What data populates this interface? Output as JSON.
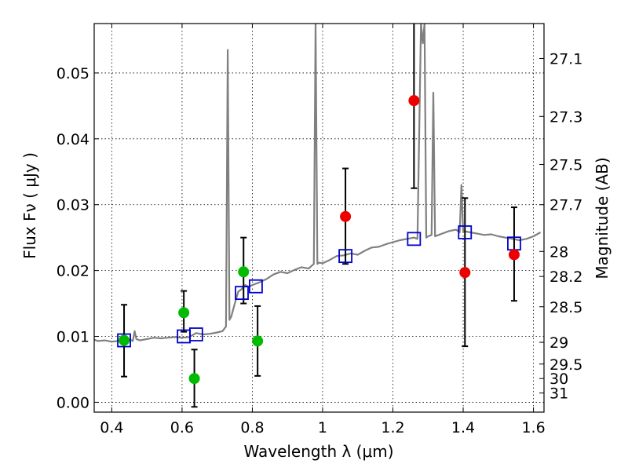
{
  "chart_data": {
    "type": "scatter",
    "title": "",
    "xlabel": "Wavelength  λ (μm)",
    "ylabel": "Flux  Fν  ( μJy )",
    "y2label": "Magnitude (AB)",
    "xlim": [
      0.35,
      1.63
    ],
    "ylim": [
      -0.0015,
      0.0575
    ],
    "xticks": [
      0.4,
      0.6,
      0.8,
      1.0,
      1.2,
      1.4,
      1.6
    ],
    "xtick_labels": [
      "0.4",
      "0.6",
      "0.8",
      "1",
      "1.2",
      "1.4",
      "1.6"
    ],
    "yticks": [
      0.0,
      0.01,
      0.02,
      0.03,
      0.04,
      0.05
    ],
    "ytick_labels": [
      "0.00",
      "0.01",
      "0.02",
      "0.03",
      "0.04",
      "0.05"
    ],
    "y2ticks": [
      {
        "label": "27.1",
        "flux": 0.0522
      },
      {
        "label": "27.3",
        "flux": 0.0434
      },
      {
        "label": "27.5",
        "flux": 0.0361
      },
      {
        "label": "27.7",
        "flux": 0.03
      },
      {
        "label": "28",
        "flux": 0.0229
      },
      {
        "label": "28.2",
        "flux": 0.0191
      },
      {
        "label": "28.5",
        "flux": 0.0145
      },
      {
        "label": "29",
        "flux": 0.0091
      },
      {
        "label": "29.5",
        "flux": 0.0058
      },
      {
        "label": "30",
        "flux": 0.0036
      },
      {
        "label": "31",
        "flux": 0.0014
      }
    ],
    "grid": true,
    "colors": {
      "model": "#808080",
      "green_points": "#00bb00",
      "red_points": "#ee0000",
      "model_boxes": "#0000cc",
      "errorbars": "#000000"
    },
    "model_spectrum": {
      "x": [
        0.35,
        0.36,
        0.38,
        0.4,
        0.42,
        0.44,
        0.45,
        0.46,
        0.465,
        0.47,
        0.48,
        0.5,
        0.52,
        0.54,
        0.56,
        0.58,
        0.6,
        0.62,
        0.64,
        0.66,
        0.68,
        0.7,
        0.715,
        0.725,
        0.73,
        0.735,
        0.74,
        0.75,
        0.76,
        0.77,
        0.78,
        0.79,
        0.8,
        0.82,
        0.84,
        0.86,
        0.88,
        0.9,
        0.92,
        0.94,
        0.96,
        0.975,
        0.98,
        0.985,
        0.99,
        1.0,
        1.02,
        1.04,
        1.06,
        1.08,
        1.1,
        1.12,
        1.14,
        1.16,
        1.18,
        1.2,
        1.22,
        1.24,
        1.26,
        1.27,
        1.28,
        1.285,
        1.29,
        1.295,
        1.3,
        1.31,
        1.315,
        1.32,
        1.33,
        1.34,
        1.36,
        1.38,
        1.39,
        1.395,
        1.4,
        1.42,
        1.44,
        1.46,
        1.48,
        1.5,
        1.52,
        1.54,
        1.56,
        1.58,
        1.6,
        1.62
      ],
      "y": [
        0.0095,
        0.0093,
        0.0094,
        0.0092,
        0.0093,
        0.0094,
        0.0096,
        0.0093,
        0.0108,
        0.0096,
        0.0094,
        0.0096,
        0.0098,
        0.0097,
        0.0098,
        0.0099,
        0.0098,
        0.0099,
        0.0105,
        0.0103,
        0.0104,
        0.0106,
        0.0108,
        0.0115,
        0.0535,
        0.0125,
        0.013,
        0.015,
        0.0168,
        0.0172,
        0.0178,
        0.0175,
        0.0178,
        0.0182,
        0.0187,
        0.0194,
        0.0198,
        0.0196,
        0.0201,
        0.0205,
        0.0203,
        0.021,
        0.0575,
        0.021,
        0.0212,
        0.0211,
        0.0216,
        0.0222,
        0.0223,
        0.0226,
        0.0224,
        0.023,
        0.0235,
        0.0236,
        0.024,
        0.0243,
        0.0246,
        0.0248,
        0.025,
        0.0248,
        0.0575,
        0.0545,
        0.0575,
        0.025,
        0.0252,
        0.0254,
        0.047,
        0.0252,
        0.0254,
        0.0256,
        0.026,
        0.0262,
        0.0258,
        0.033,
        0.026,
        0.0258,
        0.0256,
        0.0254,
        0.0255,
        0.0252,
        0.025,
        0.0248,
        0.0246,
        0.0248,
        0.0252,
        0.0258
      ]
    },
    "series": [
      {
        "marker": "green-circle",
        "x": [
          0.435,
          0.605,
          0.635,
          0.775,
          0.815
        ],
        "y": [
          0.0094,
          0.0136,
          0.0036,
          0.0198,
          0.0093
        ],
        "yerr_low": [
          0.0039,
          0.0107,
          -0.0007,
          0.015,
          0.004
        ],
        "yerr_high": [
          0.0148,
          0.0169,
          0.008,
          0.025,
          0.0146
        ]
      },
      {
        "marker": "red-circle",
        "x": [
          1.065,
          1.26,
          1.405,
          1.545
        ],
        "y": [
          0.0282,
          0.0458,
          0.0197,
          0.0224
        ],
        "yerr_low": [
          0.021,
          0.0325,
          0.0085,
          0.0154
        ],
        "yerr_high": [
          0.0355,
          0.06,
          0.031,
          0.0296
        ]
      },
      {
        "marker": "blue-open-square",
        "x": [
          0.435,
          0.605,
          0.64,
          0.77,
          0.81,
          1.065,
          1.26,
          1.405,
          1.545
        ],
        "y": [
          0.0094,
          0.01,
          0.0103,
          0.0166,
          0.0176,
          0.0222,
          0.0248,
          0.0258,
          0.0241
        ]
      }
    ]
  }
}
